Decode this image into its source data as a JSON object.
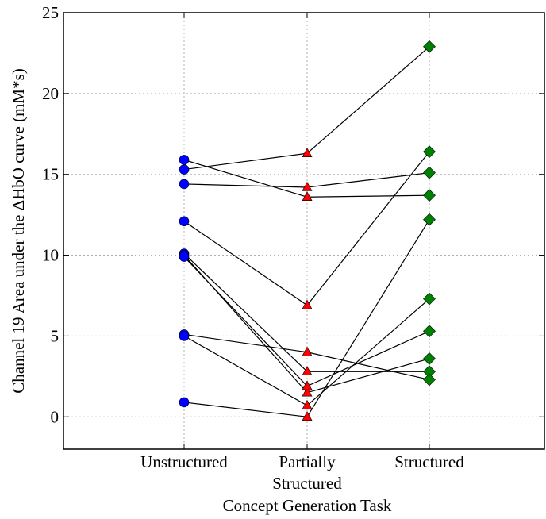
{
  "chart_data": {
    "type": "line",
    "xlabel": "Concept Generation Task",
    "ylabel": "Channel 19 Area under the ΔHbO curve (mM*s)",
    "ylim": [
      -2,
      25
    ],
    "yticks": [
      0,
      5,
      10,
      15,
      20,
      25
    ],
    "categories": [
      {
        "lines": [
          "Unstructured"
        ]
      },
      {
        "lines": [
          "Partially",
          "Structured"
        ]
      },
      {
        "lines": [
          "Structured"
        ]
      }
    ],
    "grid": true,
    "markers": [
      {
        "shape": "circle",
        "color": "#0000ff"
      },
      {
        "shape": "triangle",
        "color": "#ff0000"
      },
      {
        "shape": "diamond",
        "color": "#008000"
      }
    ],
    "series": [
      {
        "values": [
          15.3,
          16.3,
          22.9
        ]
      },
      {
        "values": [
          15.9,
          13.6,
          13.7
        ]
      },
      {
        "values": [
          14.4,
          14.2,
          15.1
        ]
      },
      {
        "values": [
          12.1,
          6.9,
          16.4
        ]
      },
      {
        "values": [
          10.1,
          2.8,
          2.8
        ]
      },
      {
        "values": [
          10.0,
          1.5,
          3.6
        ]
      },
      {
        "values": [
          9.9,
          1.9,
          5.3
        ]
      },
      {
        "values": [
          5.1,
          4.0,
          2.3
        ]
      },
      {
        "values": [
          5.0,
          0.7,
          7.3
        ]
      },
      {
        "values": [
          0.9,
          0.0,
          12.2
        ]
      }
    ]
  }
}
